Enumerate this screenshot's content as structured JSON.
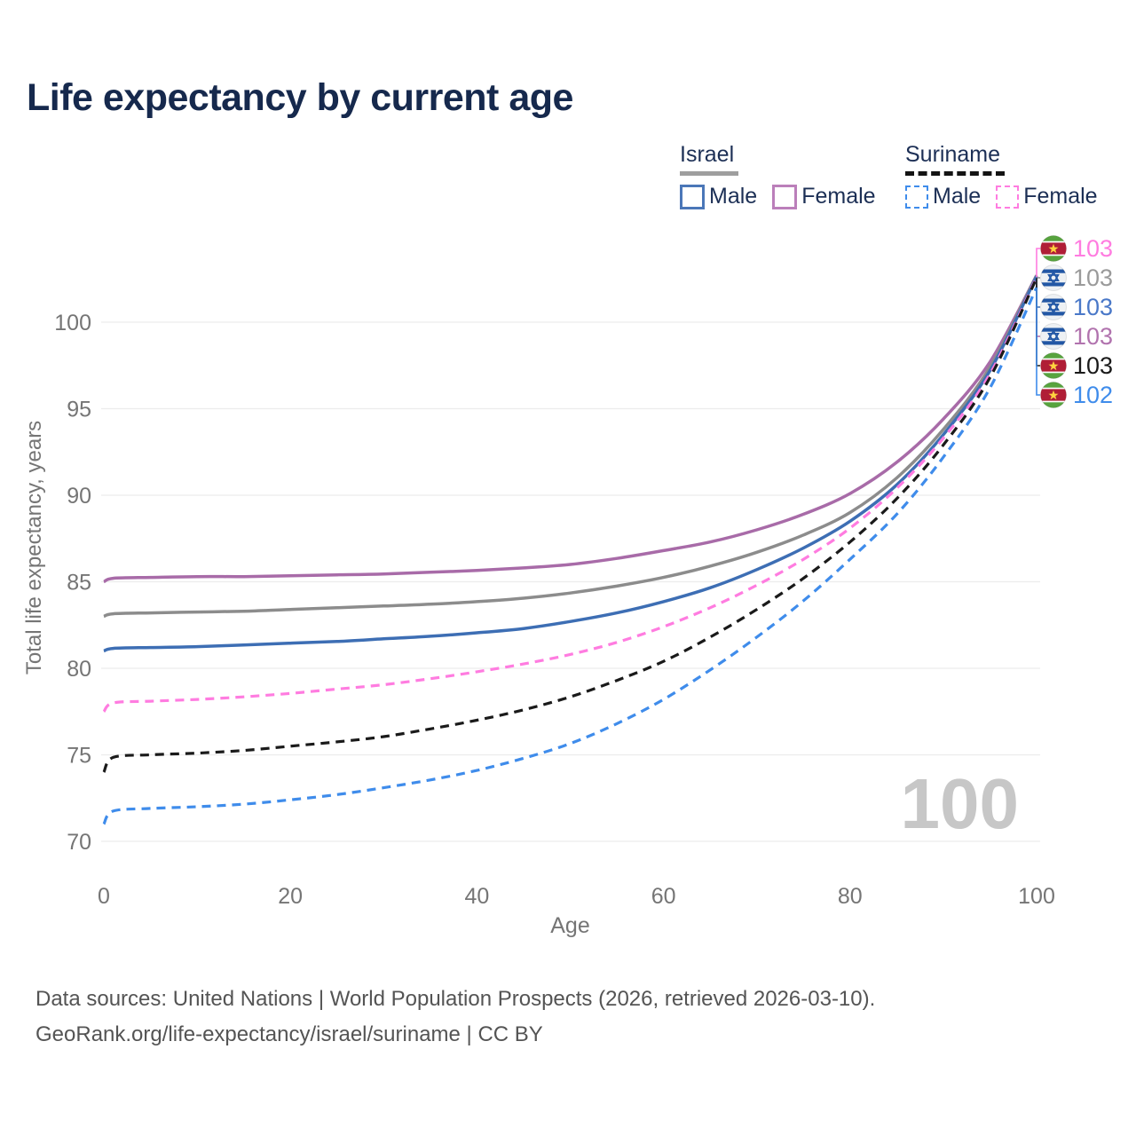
{
  "title": "Life expectancy by current age",
  "legend": {
    "israel": {
      "label": "Israel",
      "male_label": "Male",
      "female_label": "Female",
      "male_color": "#4b77b8",
      "female_color": "#bb7fba",
      "underline_color": "#9e9e9e",
      "line_style": "solid"
    },
    "suriname": {
      "label": "Suriname",
      "male_label": "Male",
      "female_label": "Female",
      "male_color": "#3f8ceb",
      "female_color": "#ff7ce0",
      "underline_color": "#141414",
      "line_style": "dashed"
    }
  },
  "watermark": "100",
  "footer": {
    "line1": "Data sources: United Nations | World Population Prospects (2026, retrieved 2026-03-10).",
    "line2": "GeoRank.org/life-expectancy/israel/suriname | CC BY"
  },
  "chart_data": {
    "type": "line",
    "title": "Life expectancy by current age",
    "xlabel": "Age",
    "ylabel": "Total life expectancy, years",
    "xlim": [
      0,
      100
    ],
    "ylim": [
      70,
      100
    ],
    "x_ticks": [
      0,
      20,
      40,
      60,
      80,
      100
    ],
    "y_ticks": [
      70,
      75,
      80,
      85,
      90,
      95,
      100
    ],
    "grid": "horizontal",
    "grid_color": "#ececec",
    "axis_text_color": "#757575",
    "x": [
      0,
      1,
      5,
      10,
      15,
      20,
      25,
      30,
      35,
      40,
      45,
      50,
      55,
      60,
      65,
      70,
      75,
      80,
      85,
      90,
      95,
      100
    ],
    "series": [
      {
        "id": "israel-female",
        "name": "Israel Female",
        "country": "israel",
        "sex": "Female",
        "color": "#a86ba8",
        "dash": "solid",
        "end_label": "103",
        "end_label_color": "#b173ae",
        "label_row": 3,
        "values": [
          85.0,
          85.2,
          85.25,
          85.3,
          85.3,
          85.35,
          85.4,
          85.45,
          85.55,
          85.65,
          85.8,
          86.0,
          86.35,
          86.8,
          87.3,
          88.0,
          88.9,
          90.1,
          91.9,
          94.4,
          97.7,
          102.7
        ]
      },
      {
        "id": "israel-all",
        "name": "Israel",
        "country": "israel",
        "sex": "All",
        "color": "#8c8c8c",
        "dash": "solid",
        "end_label": "103",
        "end_label_color": "#9a9a9a",
        "label_row": 1,
        "values": [
          83.0,
          83.15,
          83.2,
          83.25,
          83.3,
          83.4,
          83.5,
          83.6,
          83.7,
          83.85,
          84.05,
          84.35,
          84.75,
          85.25,
          85.9,
          86.7,
          87.7,
          89.0,
          91.0,
          93.8,
          97.4,
          102.7
        ]
      },
      {
        "id": "israel-male",
        "name": "Israel Male",
        "country": "israel",
        "sex": "Male",
        "color": "#3d6eb4",
        "dash": "solid",
        "end_label": "103",
        "end_label_color": "#4a78c8",
        "label_row": 2,
        "values": [
          81.0,
          81.15,
          81.2,
          81.25,
          81.35,
          81.45,
          81.55,
          81.7,
          81.85,
          82.05,
          82.3,
          82.7,
          83.2,
          83.85,
          84.65,
          85.7,
          86.95,
          88.5,
          90.6,
          93.5,
          97.2,
          102.65
        ]
      },
      {
        "id": "suriname-female",
        "name": "Suriname Female",
        "country": "suriname",
        "sex": "Female",
        "color": "#ff7ce0",
        "dash": "dashed",
        "end_label": "103",
        "end_label_color": "#ff7ce0",
        "label_row": 0,
        "values": [
          77.5,
          78.0,
          78.1,
          78.2,
          78.35,
          78.55,
          78.8,
          79.05,
          79.4,
          79.8,
          80.25,
          80.8,
          81.5,
          82.4,
          83.5,
          84.8,
          86.3,
          88.1,
          90.4,
          93.3,
          97.0,
          102.6
        ]
      },
      {
        "id": "suriname-all",
        "name": "Suriname",
        "country": "suriname",
        "sex": "All",
        "color": "#1a1a1a",
        "dash": "dashed",
        "end_label": "103",
        "end_label_color": "#1a1a1a",
        "label_row": 4,
        "values": [
          74.0,
          74.85,
          75.0,
          75.1,
          75.25,
          75.5,
          75.75,
          76.05,
          76.5,
          77.0,
          77.6,
          78.35,
          79.3,
          80.4,
          81.8,
          83.4,
          85.2,
          87.3,
          89.8,
          92.9,
          96.8,
          102.55
        ]
      },
      {
        "id": "suriname-male",
        "name": "Suriname Male",
        "country": "suriname",
        "sex": "Male",
        "color": "#3f8ceb",
        "dash": "dashed",
        "end_label": "102",
        "end_label_color": "#3f8ceb",
        "label_row": 5,
        "values": [
          71.0,
          71.75,
          71.9,
          72.0,
          72.15,
          72.4,
          72.7,
          73.1,
          73.55,
          74.1,
          74.8,
          75.65,
          76.8,
          78.2,
          79.9,
          81.8,
          83.9,
          86.3,
          88.9,
          92.2,
          96.2,
          102.0
        ]
      }
    ],
    "legend_position": "top-right",
    "end_label_rows_top_to_bottom": [
      "Suriname Female",
      "Israel",
      "Israel Male",
      "Israel Female",
      "Suriname",
      "Suriname Male"
    ]
  }
}
